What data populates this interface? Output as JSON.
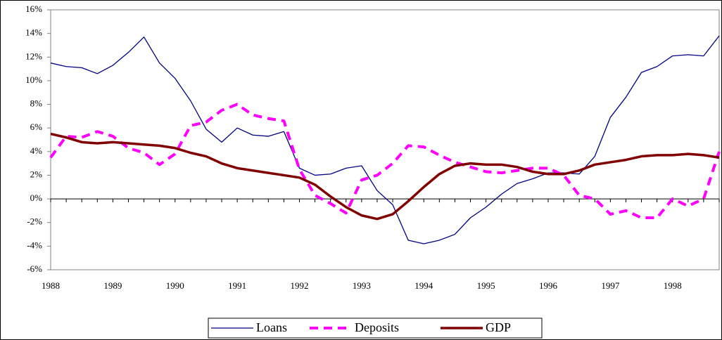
{
  "chart_data": {
    "type": "line",
    "categories": [
      "1988",
      null,
      null,
      null,
      "1989",
      null,
      null,
      null,
      "1990",
      null,
      null,
      null,
      "1991",
      null,
      null,
      null,
      "1992",
      null,
      null,
      null,
      "1993",
      null,
      null,
      null,
      "1994",
      null,
      null,
      null,
      "1995",
      null,
      null,
      null,
      "1996",
      null,
      null,
      null,
      "1997",
      null,
      null,
      null,
      "1998",
      null,
      null,
      null
    ],
    "series": [
      {
        "name": "Loans",
        "color": "#000080",
        "values": [
          11.5,
          11.2,
          11.1,
          10.6,
          11.3,
          12.4,
          13.7,
          11.5,
          10.2,
          8.3,
          5.9,
          4.8,
          6.0,
          5.4,
          5.3,
          5.7,
          2.6,
          2.0,
          2.1,
          2.6,
          2.8,
          0.7,
          -0.5,
          -3.5,
          -3.8,
          -3.5,
          -3.0,
          -1.6,
          -0.7,
          0.4,
          1.3,
          1.7,
          2.2,
          2.2,
          2.1,
          3.6,
          6.9,
          8.6,
          10.7,
          11.2,
          12.1,
          12.2,
          12.1,
          13.8
        ]
      },
      {
        "name": "Deposits",
        "color": "#ff00ff",
        "values": [
          3.5,
          5.3,
          5.2,
          5.7,
          5.3,
          4.3,
          3.9,
          2.9,
          3.8,
          6.2,
          6.5,
          7.5,
          8.0,
          7.1,
          6.8,
          6.6,
          2.5,
          0.3,
          -0.4,
          -1.2,
          1.6,
          2.0,
          3.0,
          4.5,
          4.4,
          3.7,
          3.1,
          2.7,
          2.3,
          2.2,
          2.4,
          2.6,
          2.6,
          2.0,
          0.3,
          0.0,
          -1.3,
          -1.0,
          -1.6,
          -1.6,
          0.0,
          -0.6,
          0.0,
          4.0
        ]
      },
      {
        "name": "GDP",
        "color": "#800000",
        "values": [
          5.5,
          5.2,
          4.8,
          4.7,
          4.8,
          4.7,
          4.6,
          4.5,
          4.3,
          3.9,
          3.6,
          3.0,
          2.6,
          2.4,
          2.2,
          2.0,
          1.8,
          1.2,
          0.2,
          -0.7,
          -1.4,
          -1.7,
          -1.3,
          -0.2,
          1.0,
          2.1,
          2.8,
          3.0,
          2.9,
          2.9,
          2.7,
          2.3,
          2.1,
          2.1,
          2.4,
          2.9,
          3.1,
          3.3,
          3.6,
          3.7,
          3.7,
          3.8,
          3.7,
          3.5
        ]
      }
    ],
    "ylim": [
      -6,
      16
    ],
    "yticks": [
      {
        "value": -6,
        "label": "-6%"
      },
      {
        "value": -4,
        "label": "-4%"
      },
      {
        "value": -2,
        "label": "-2%"
      },
      {
        "value": 0,
        "label": "0%"
      },
      {
        "value": 2,
        "label": "2%"
      },
      {
        "value": 4,
        "label": "4%"
      },
      {
        "value": 6,
        "label": "6%"
      },
      {
        "value": 8,
        "label": "8%"
      },
      {
        "value": 10,
        "label": "10%"
      },
      {
        "value": 12,
        "label": "12%"
      },
      {
        "value": 14,
        "label": "14%"
      },
      {
        "value": 16,
        "label": "16%"
      }
    ],
    "grid": false,
    "legend": "bottom"
  }
}
